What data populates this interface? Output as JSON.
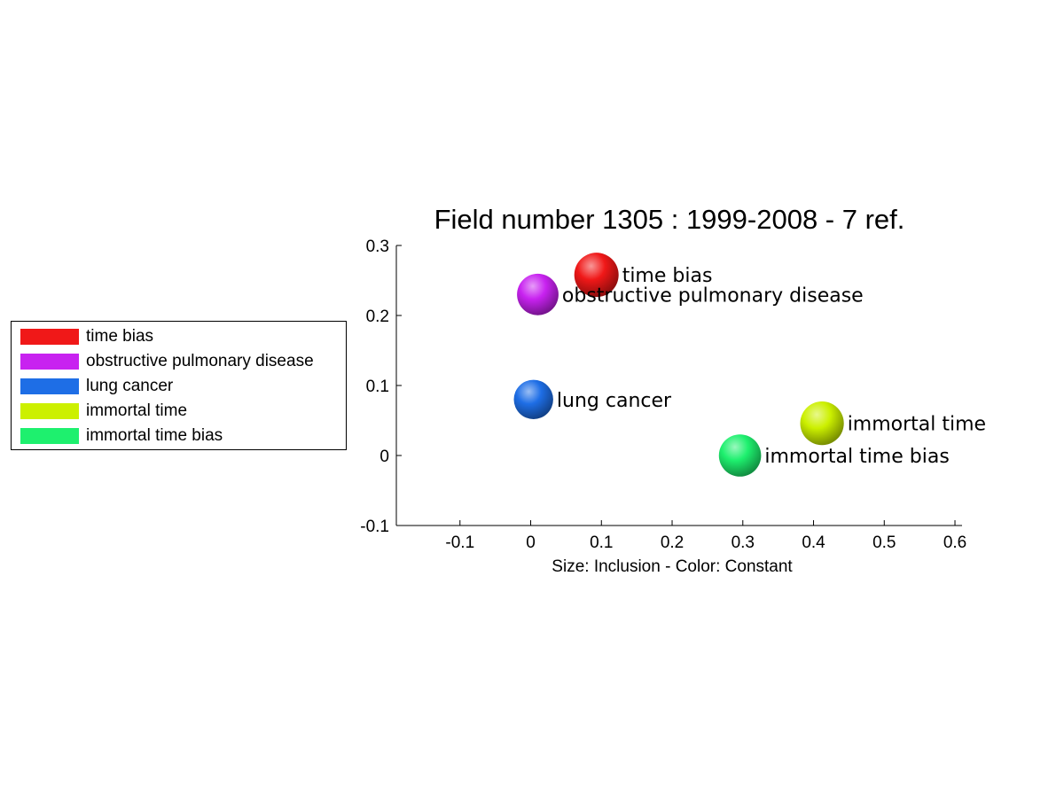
{
  "chart_data": {
    "type": "scatter",
    "title": "Field number 1305 : 1999-2008  - 7 ref.",
    "xlabel": "Size: Inclusion - Color: Constant",
    "ylabel": "",
    "xlim": [
      -0.19,
      0.61
    ],
    "ylim": [
      -0.1,
      0.3
    ],
    "xticks": [
      -0.1,
      0,
      0.1,
      0.2,
      0.3,
      0.4,
      0.5,
      0.6
    ],
    "xtick_labels": [
      "-0.1",
      "0",
      "0.1",
      "0.2",
      "0.3",
      "0.4",
      "0.5",
      "0.6"
    ],
    "yticks": [
      -0.1,
      0,
      0.1,
      0.2,
      0.3
    ],
    "ytick_labels": [
      "-0.1",
      "0",
      "0.1",
      "0.2",
      "0.3"
    ],
    "grid": false,
    "legend_position": "left",
    "points": [
      {
        "label": "time bias",
        "x": 0.093,
        "y": 0.258,
        "size": 1.0,
        "color": "#f01818"
      },
      {
        "label": "obstructive pulmonary disease",
        "x": 0.01,
        "y": 0.23,
        "size": 0.8,
        "color": "#c822f0"
      },
      {
        "label": "lung cancer",
        "x": 0.004,
        "y": 0.08,
        "size": 0.65,
        "color": "#1e6ee6"
      },
      {
        "label": "immortal time",
        "x": 0.412,
        "y": 0.046,
        "size": 0.95,
        "color": "#ccf000"
      },
      {
        "label": "immortal time bias",
        "x": 0.296,
        "y": 0.0,
        "size": 0.85,
        "color": "#1ef06e"
      }
    ]
  },
  "legend": {
    "items": [
      {
        "label": "time bias",
        "color": "#f01818"
      },
      {
        "label": "obstructive pulmonary disease",
        "color": "#c822f0"
      },
      {
        "label": "lung cancer",
        "color": "#1e6ee6"
      },
      {
        "label": "immortal time",
        "color": "#ccf000"
      },
      {
        "label": "immortal time bias",
        "color": "#1ef06e"
      }
    ]
  }
}
